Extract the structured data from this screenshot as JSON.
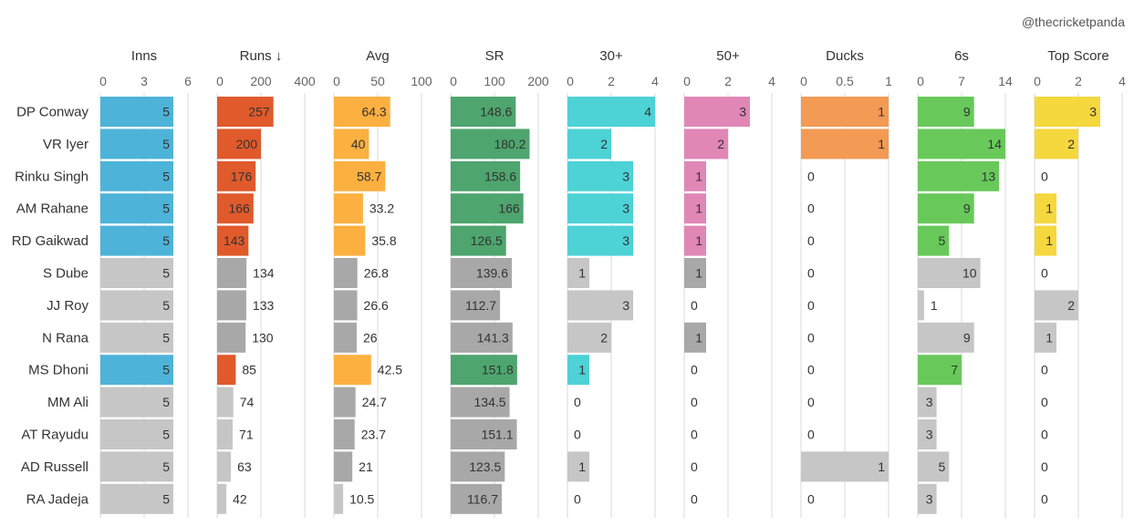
{
  "credit": "@thecricketpanda",
  "chart_data": {
    "type": "bar",
    "players": [
      "DP Conway",
      "VR Iyer",
      "Rinku Singh",
      "AM Rahane",
      "RD Gaikwad",
      "S Dube",
      "JJ Roy",
      "N Rana",
      "MS Dhoni",
      "MM Ali",
      "AT Rayudu",
      "AD Russell",
      "RA Jadeja"
    ],
    "grey_scale": [
      "#c6c6c6",
      "#a8a8a8",
      "#8e8e8e"
    ],
    "columns": [
      {
        "title": "Inns",
        "ticks": [
          "0",
          "3",
          "6"
        ],
        "max": 6,
        "color": "#4eb3d8",
        "values": [
          5,
          5,
          5,
          5,
          5,
          5,
          5,
          5,
          5,
          5,
          5,
          5,
          5
        ],
        "labels": [
          "5",
          "5",
          "5",
          "5",
          "5",
          "5",
          "5",
          "5",
          "5",
          "5",
          "5",
          "5",
          "5"
        ],
        "highlight": [
          true,
          true,
          true,
          true,
          true,
          false,
          false,
          false,
          true,
          false,
          false,
          false,
          false
        ]
      },
      {
        "title": "Runs ↓",
        "ticks": [
          "0",
          "200",
          "400"
        ],
        "max": 400,
        "color": "#e05a2b",
        "values": [
          257,
          200,
          176,
          166,
          143,
          134,
          133,
          130,
          85,
          74,
          71,
          63,
          42
        ],
        "labels": [
          "257",
          "200",
          "176",
          "166",
          "143",
          "134",
          "133",
          "130",
          "85",
          "74",
          "71",
          "63",
          "42"
        ],
        "highlight": [
          true,
          true,
          true,
          true,
          true,
          false,
          false,
          false,
          true,
          false,
          false,
          false,
          false
        ]
      },
      {
        "title": "Avg",
        "ticks": [
          "0",
          "50",
          "100"
        ],
        "max": 100,
        "color": "#fcb040",
        "values": [
          64.3,
          40,
          58.7,
          33.2,
          35.8,
          26.8,
          26.6,
          26,
          42.5,
          24.7,
          23.7,
          21,
          10.5
        ],
        "labels": [
          "64.3",
          "40",
          "58.7",
          "33.2",
          "35.8",
          "26.8",
          "26.6",
          "26",
          "42.5",
          "24.7",
          "23.7",
          "21",
          "10.5"
        ],
        "highlight": [
          true,
          true,
          true,
          true,
          true,
          false,
          false,
          false,
          true,
          false,
          false,
          false,
          false
        ]
      },
      {
        "title": "SR",
        "ticks": [
          "0",
          "100",
          "200"
        ],
        "max": 200,
        "color": "#4ea56e",
        "values": [
          148.6,
          180.2,
          158.6,
          166,
          126.5,
          139.6,
          112.7,
          141.3,
          151.8,
          134.5,
          151.1,
          123.5,
          116.7
        ],
        "labels": [
          "148.6",
          "180.2",
          "158.6",
          "166",
          "126.5",
          "139.6",
          "112.7",
          "141.3",
          "151.8",
          "134.5",
          "151.1",
          "123.5",
          "116.7"
        ],
        "highlight": [
          true,
          true,
          true,
          true,
          true,
          false,
          false,
          false,
          true,
          false,
          false,
          false,
          false
        ]
      },
      {
        "title": "30+",
        "ticks": [
          "0",
          "2",
          "4"
        ],
        "max": 4,
        "color": "#4dd2d6",
        "values": [
          4,
          2,
          3,
          3,
          3,
          1,
          3,
          2,
          1,
          0,
          0,
          1,
          0
        ],
        "labels": [
          "4",
          "2",
          "3",
          "3",
          "3",
          "1",
          "3",
          "2",
          "1",
          "0",
          "0",
          "1",
          "0"
        ],
        "highlight": [
          true,
          true,
          true,
          true,
          true,
          false,
          false,
          false,
          true,
          false,
          false,
          false,
          false
        ]
      },
      {
        "title": "50+",
        "ticks": [
          "0",
          "2",
          "4"
        ],
        "max": 4,
        "color": "#e087b6",
        "values": [
          3,
          2,
          1,
          1,
          1,
          1,
          0,
          1,
          0,
          0,
          0,
          0,
          0
        ],
        "labels": [
          "3",
          "2",
          "1",
          "1",
          "1",
          "1",
          "0",
          "1",
          "0",
          "0",
          "0",
          "0",
          "0"
        ],
        "highlight": [
          true,
          true,
          true,
          true,
          true,
          false,
          false,
          false,
          true,
          false,
          false,
          false,
          false
        ]
      },
      {
        "title": "Ducks",
        "ticks": [
          "0",
          "0.5",
          "1"
        ],
        "max": 1,
        "color": "#f39a55",
        "values": [
          1,
          1,
          0,
          0,
          0,
          0,
          0,
          0,
          0,
          0,
          0,
          1,
          0
        ],
        "labels": [
          "1",
          "1",
          "0",
          "0",
          "0",
          "0",
          "0",
          "0",
          "0",
          "0",
          "0",
          "1",
          "0"
        ],
        "highlight": [
          true,
          true,
          true,
          true,
          true,
          false,
          false,
          false,
          true,
          false,
          false,
          false,
          false
        ]
      },
      {
        "title": "6s",
        "ticks": [
          "0",
          "7",
          "14"
        ],
        "max": 14,
        "color": "#68c95a",
        "values": [
          9,
          14,
          13,
          9,
          5,
          10,
          1,
          9,
          7,
          3,
          3,
          5,
          3
        ],
        "labels": [
          "9",
          "14",
          "13",
          "9",
          "5",
          "10",
          "1",
          "9",
          "7",
          "3",
          "3",
          "5",
          "3"
        ],
        "highlight": [
          true,
          true,
          true,
          true,
          true,
          false,
          false,
          false,
          true,
          false,
          false,
          false,
          false
        ]
      },
      {
        "title": "Top Score",
        "ticks": [
          "0",
          "2",
          "4"
        ],
        "max": 4,
        "color": "#f5d73e",
        "values": [
          3,
          2,
          0,
          1,
          1,
          0,
          2,
          1,
          0,
          0,
          0,
          0,
          0
        ],
        "labels": [
          "3",
          "2",
          "0",
          "1",
          "1",
          "0",
          "2",
          "1",
          "0",
          "0",
          "0",
          "0",
          "0"
        ],
        "highlight": [
          true,
          true,
          true,
          true,
          true,
          false,
          false,
          false,
          true,
          false,
          false,
          false,
          false
        ]
      }
    ]
  }
}
